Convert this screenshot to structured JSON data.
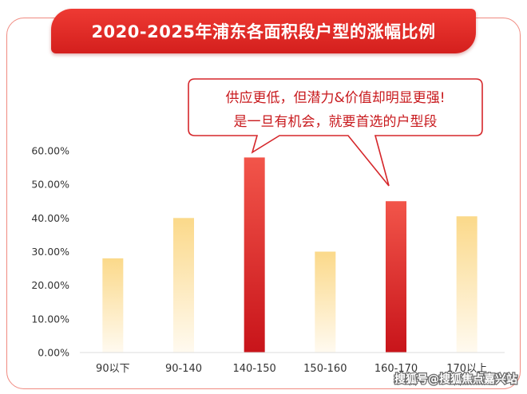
{
  "title": "2020-2025年浦东各面积段户型的涨幅比例",
  "callout": {
    "line1": "供应更低，但潜力&价值却明显更强!",
    "line2": "是一旦有机会，就要首选的户型段"
  },
  "watermark": "搜狐号@搜狐焦点嘉兴站",
  "colors": {
    "highlight_top": "#f2554a",
    "highlight_bottom": "#c8141a",
    "normal_top": "#fbd98a",
    "normal_bottom": "#fffaf0",
    "frame": "#f08a80"
  },
  "chart_data": {
    "type": "bar",
    "title": "2020-2025年浦东各面积段户型的涨幅比例",
    "xlabel": "",
    "ylabel": "",
    "categories": [
      "90以下",
      "90-140",
      "140-150",
      "150-160",
      "160-170",
      "170以上"
    ],
    "values": [
      28,
      40,
      58,
      30,
      45,
      40.5
    ],
    "highlighted": [
      false,
      false,
      true,
      false,
      true,
      false
    ],
    "ylim": [
      0,
      60
    ],
    "yticks": [
      0,
      10,
      20,
      30,
      40,
      50,
      60
    ],
    "ytick_labels": [
      "0.00%",
      "10.00%",
      "20.00%",
      "30.00%",
      "40.00%",
      "50.00%",
      "60.00%"
    ],
    "grid": false,
    "legend": "none"
  }
}
